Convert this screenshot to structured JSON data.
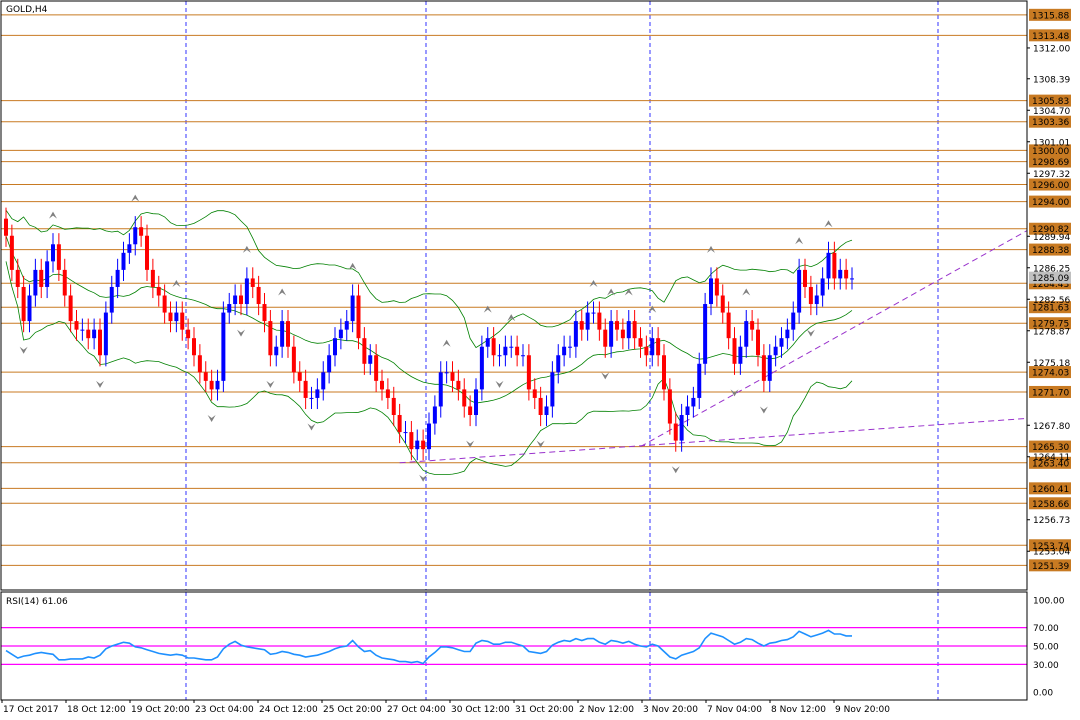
{
  "chart_data": {
    "type": "candlestick",
    "title": "GOLD,H4",
    "price_ylim": [
      1248.5,
      1317.5
    ],
    "price_ticks": [
      "1312.00",
      "1308.39",
      "1304.70",
      "1301.01",
      "1297.32",
      "1289.94",
      "1286.25",
      "1282.56",
      "1278.87",
      "1275.18",
      "1267.80",
      "1264.11",
      "1256.73",
      "1253.04"
    ],
    "levels": [
      {
        "label": "1315.88",
        "value": 1315.88
      },
      {
        "label": "1313.48",
        "value": 1313.48
      },
      {
        "label": "1305.83",
        "value": 1305.83
      },
      {
        "label": "1303.36",
        "value": 1303.36
      },
      {
        "label": "1300.00",
        "value": 1300.0
      },
      {
        "label": "1298.69",
        "value": 1298.69
      },
      {
        "label": "1296.00",
        "value": 1296.0
      },
      {
        "label": "1294.00",
        "value": 1294.0
      },
      {
        "label": "1290.82",
        "value": 1290.82
      },
      {
        "label": "1288.38",
        "value": 1288.38
      },
      {
        "label": "1284.43",
        "value": 1284.43
      },
      {
        "label": "1281.63",
        "value": 1281.63
      },
      {
        "label": "1279.75",
        "value": 1279.75
      },
      {
        "label": "1274.03",
        "value": 1274.03
      },
      {
        "label": "1271.70",
        "value": 1271.7
      },
      {
        "label": "1265.30",
        "value": 1265.3
      },
      {
        "label": "1263.40",
        "value": 1263.4
      },
      {
        "label": "1260.41",
        "value": 1260.41
      },
      {
        "label": "1258.66",
        "value": 1258.66
      },
      {
        "label": "1253.74",
        "value": 1253.74
      },
      {
        "label": "1251.39",
        "value": 1251.39
      }
    ],
    "current_price": "1285.09",
    "closes": [
      1290,
      1286,
      1284,
      1280,
      1283,
      1286,
      1284,
      1287,
      1289,
      1286,
      1283,
      1280,
      1279,
      1279,
      1278,
      1279,
      1276,
      1281,
      1284,
      1286,
      1288,
      1289,
      1291,
      1290,
      1286,
      1284,
      1283,
      1281,
      1280,
      1281,
      1279,
      1278,
      1276,
      1274,
      1273,
      1272,
      1273,
      1281,
      1282,
      1283,
      1282,
      1285,
      1284,
      1282,
      1280,
      1276,
      1277,
      1280,
      1277,
      1274,
      1273,
      1271,
      1271,
      1272,
      1274,
      1276,
      1278,
      1279,
      1280,
      1283,
      1278,
      1275,
      1276,
      1273,
      1272,
      1271,
      1269,
      1267,
      1267,
      1265,
      1266,
      1265,
      1268,
      1270,
      1274,
      1274,
      1273,
      1272,
      1270,
      1269,
      1272,
      1277,
      1278,
      1276,
      1276,
      1277,
      1277,
      1276,
      1276,
      1272,
      1271,
      1269,
      1270,
      1274,
      1276,
      1277,
      1277,
      1280,
      1279,
      1281,
      1281,
      1279,
      1277,
      1280,
      1279,
      1278,
      1280,
      1278,
      1277,
      1276,
      1278,
      1276,
      1272,
      1268,
      1266,
      1269,
      1270,
      1271,
      1275,
      1282,
      1285,
      1283,
      1281,
      1278,
      1275,
      1277,
      1280,
      1279,
      1276,
      1273,
      1276,
      1277,
      1278,
      1279,
      1281,
      1286,
      1284,
      1282,
      1283,
      1285,
      1288,
      1285,
      1286,
      1285,
      1285
    ],
    "rsi": {
      "label": "RSI(14)",
      "value": "61.06",
      "ylim": [
        0,
        100
      ],
      "ticks": [
        "100.00",
        "70.00",
        "50.00",
        "30.00",
        "0.00"
      ],
      "levels": [
        70,
        50,
        30
      ],
      "values": [
        45,
        41,
        37,
        39,
        40,
        42,
        43,
        42,
        41,
        35,
        35,
        36,
        36,
        36,
        38,
        37,
        40,
        47,
        50,
        52,
        54,
        53,
        49,
        48,
        46,
        44,
        42,
        41,
        40,
        41,
        40,
        37,
        37,
        36,
        35,
        35,
        38,
        47,
        52,
        55,
        51,
        49,
        48,
        47,
        46,
        41,
        42,
        44,
        43,
        41,
        40,
        38,
        39,
        40,
        42,
        44,
        47,
        49,
        50,
        56,
        49,
        44,
        45,
        40,
        37,
        36,
        35,
        33,
        33,
        32,
        33,
        31,
        38,
        43,
        49,
        49,
        48,
        46,
        44,
        44,
        53,
        56,
        55,
        52,
        52,
        54,
        54,
        52,
        50,
        44,
        43,
        42,
        44,
        51,
        54,
        56,
        55,
        58,
        56,
        58,
        58,
        54,
        52,
        56,
        55,
        53,
        55,
        52,
        50,
        49,
        52,
        50,
        44,
        38,
        36,
        40,
        42,
        44,
        48,
        58,
        64,
        62,
        60,
        56,
        52,
        54,
        58,
        57,
        53,
        50,
        53,
        54,
        56,
        57,
        60,
        66,
        63,
        60,
        62,
        64,
        67,
        63,
        63,
        61,
        61
      ]
    },
    "x_labels": [
      "17 Oct 2017",
      "18 Oct 12:00",
      "19 Oct 20:00",
      "23 Oct 04:00",
      "24 Oct 12:00",
      "25 Oct 20:00",
      "27 Oct 04:00",
      "30 Oct 12:00",
      "31 Oct 20:00",
      "2 Nov 12:00",
      "3 Nov 20:00",
      "7 Nov 04:00",
      "8 Nov 12:00",
      "9 Nov 20:00"
    ],
    "colors": {
      "bull": "#0000ff",
      "bear": "#ff0000",
      "bands": "#008000",
      "levels": "#c87a22",
      "rsi_line": "#1e90ff",
      "rsi_levels": "#ff00ff",
      "grid": "#0000ff",
      "trend": "#9932cc"
    }
  }
}
